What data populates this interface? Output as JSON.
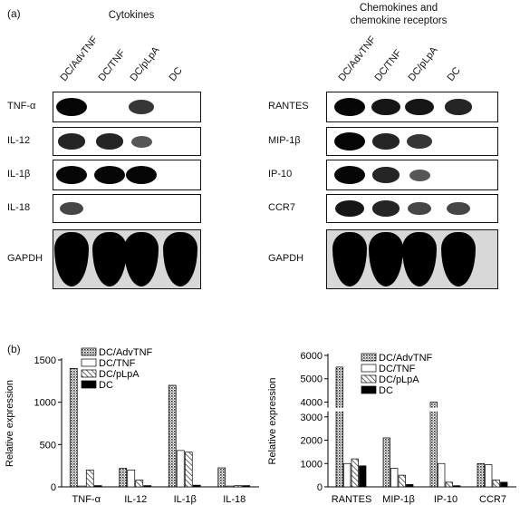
{
  "panel_a": {
    "letter": "(a)",
    "left": {
      "title": "Cytokines",
      "lanes": [
        "DC/AdvTNF",
        "DC/TNF",
        "DC/pLpA",
        "DC"
      ],
      "rows": [
        {
          "label": "TNF-α",
          "bands": [
            1,
            0,
            0.7,
            0
          ]
        },
        {
          "label": "IL-12",
          "bands": [
            0.8,
            0.8,
            0.5,
            0
          ]
        },
        {
          "label": "IL-1β",
          "bands": [
            1,
            1,
            1,
            0
          ]
        },
        {
          "label": "IL-18",
          "bands": [
            0.6,
            0,
            0,
            0
          ]
        },
        {
          "label": "GAPDH",
          "bands": [
            1,
            1,
            1,
            1
          ]
        }
      ]
    },
    "right": {
      "title_line1": "Chemokines and",
      "title_line2": "chemokine receptors",
      "lanes": [
        "DC/AdvTNF",
        "DC/TNF",
        "DC/pLpA",
        "DC"
      ],
      "rows": [
        {
          "label": "RANTES",
          "bands": [
            1,
            0.9,
            0.9,
            0.8
          ]
        },
        {
          "label": "MIP-1β",
          "bands": [
            1,
            0.8,
            0.7,
            0
          ]
        },
        {
          "label": "IP-10",
          "bands": [
            1,
            0.8,
            0.5,
            0
          ]
        },
        {
          "label": "CCR7",
          "bands": [
            0.9,
            0.8,
            0.6,
            0.6
          ]
        },
        {
          "label": "GAPDH",
          "bands": [
            1,
            1,
            1,
            1
          ]
        }
      ]
    }
  },
  "panel_b": {
    "letter": "(b)"
  },
  "chart_data": [
    {
      "type": "bar",
      "categories": [
        "TNF-α",
        "IL-12",
        "IL-1β",
        "IL-18"
      ],
      "ylabel": "Relative expression",
      "ylim": [
        0,
        1500
      ],
      "yticks": [
        0,
        500,
        1000,
        1500
      ],
      "legend": "top-right",
      "series": [
        {
          "name": "DC/AdvTNF",
          "values": [
            1400,
            220,
            1200,
            225
          ]
        },
        {
          "name": "DC/TNF",
          "values": [
            10,
            200,
            430,
            10
          ]
        },
        {
          "name": "DC/pLpA",
          "values": [
            200,
            80,
            410,
            15
          ]
        },
        {
          "name": "DC",
          "values": [
            15,
            15,
            20,
            15
          ]
        }
      ]
    },
    {
      "type": "bar",
      "categories": [
        "RANTES",
        "MIP-1β",
        "IP-10",
        "CCR7"
      ],
      "ylabel": "Relative expression",
      "ylim": [
        0,
        6000
      ],
      "yticks": [
        0,
        1000,
        2000,
        3000,
        4000,
        5000,
        6000
      ],
      "axis_break": [
        3200,
        3800
      ],
      "legend": "top-right",
      "series": [
        {
          "name": "DC/AdvTNF",
          "values": [
            5500,
            2100,
            4000,
            1000
          ]
        },
        {
          "name": "DC/TNF",
          "values": [
            1000,
            800,
            1000,
            950
          ]
        },
        {
          "name": "DC/pLpA",
          "values": [
            1200,
            500,
            200,
            300
          ]
        },
        {
          "name": "DC",
          "values": [
            900,
            100,
            50,
            200
          ]
        }
      ]
    }
  ]
}
